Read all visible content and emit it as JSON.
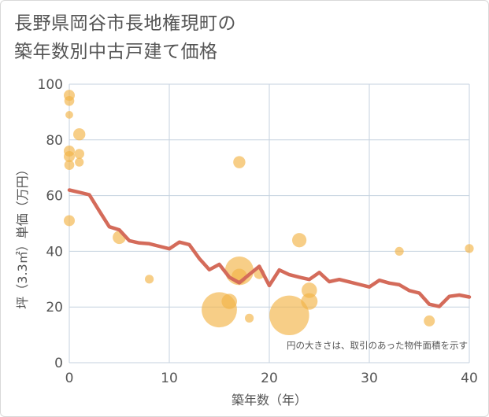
{
  "title_lines": [
    "長野県岡谷市長地権現町の",
    "築年数別中古戸建て価格"
  ],
  "chart_data": {
    "type": "scatter",
    "xlabel": "築年数（年）",
    "ylabel": "坪（3.3㎡）単価（万円）",
    "xlim": [
      0,
      40
    ],
    "ylim": [
      0,
      100
    ],
    "xticks": [
      0,
      10,
      20,
      30,
      40
    ],
    "yticks": [
      0,
      20,
      40,
      60,
      80,
      100
    ],
    "grid": true,
    "note": "円の大きさは、取引のあった物件面積を示す",
    "colors": {
      "bubble": "#f2b447",
      "line": "#d46b5a",
      "grid": "#c5d2df",
      "text": "#555555"
    },
    "bubbles": [
      {
        "x": 0,
        "y": 96,
        "s": 1.0
      },
      {
        "x": 0,
        "y": 94,
        "s": 0.9
      },
      {
        "x": 0,
        "y": 89,
        "s": 0.7
      },
      {
        "x": 0,
        "y": 76,
        "s": 1.0
      },
      {
        "x": 0,
        "y": 74,
        "s": 1.0
      },
      {
        "x": 0,
        "y": 71,
        "s": 0.9
      },
      {
        "x": 0,
        "y": 51,
        "s": 1.0
      },
      {
        "x": 1,
        "y": 82,
        "s": 1.1
      },
      {
        "x": 1,
        "y": 75,
        "s": 0.9
      },
      {
        "x": 1,
        "y": 72,
        "s": 0.8
      },
      {
        "x": 5,
        "y": 45,
        "s": 1.2
      },
      {
        "x": 8,
        "y": 30,
        "s": 0.8
      },
      {
        "x": 15,
        "y": 19,
        "s": 3.2
      },
      {
        "x": 16,
        "y": 22,
        "s": 1.4
      },
      {
        "x": 17,
        "y": 72,
        "s": 1.1
      },
      {
        "x": 17,
        "y": 33,
        "s": 2.6
      },
      {
        "x": 17,
        "y": 31,
        "s": 1.4
      },
      {
        "x": 18,
        "y": 16,
        "s": 0.8
      },
      {
        "x": 19,
        "y": 32,
        "s": 1.0
      },
      {
        "x": 22,
        "y": 17,
        "s": 3.6
      },
      {
        "x": 23,
        "y": 44,
        "s": 1.3
      },
      {
        "x": 24,
        "y": 26,
        "s": 1.4
      },
      {
        "x": 24,
        "y": 22,
        "s": 1.5
      },
      {
        "x": 33,
        "y": 40,
        "s": 0.8
      },
      {
        "x": 36,
        "y": 15,
        "s": 1.0
      },
      {
        "x": 40,
        "y": 41,
        "s": 0.8
      }
    ],
    "trend": {
      "x": [
        0,
        1,
        2,
        3,
        4,
        5,
        6,
        7,
        8,
        9,
        10,
        11,
        12,
        13,
        14,
        15,
        16,
        17,
        18,
        19,
        20,
        21,
        22,
        23,
        24,
        25,
        26,
        27,
        28,
        29,
        30,
        31,
        32,
        33,
        34,
        35,
        36,
        37,
        38,
        39,
        40
      ],
      "y": [
        62,
        61.2,
        60.3,
        54.5,
        48.8,
        47.7,
        43.8,
        43.0,
        42.7,
        41.8,
        40.9,
        43.3,
        42.4,
        37.4,
        33.4,
        35.3,
        30.7,
        28.7,
        31.7,
        34.6,
        27.7,
        33.3,
        31.6,
        30.7,
        29.9,
        32.4,
        29.1,
        29.9,
        29.0,
        28.1,
        27.2,
        29.6,
        28.6,
        28.0,
        25.9,
        25.0,
        21.0,
        20.2,
        23.8,
        24.3,
        23.6
      ]
    }
  }
}
